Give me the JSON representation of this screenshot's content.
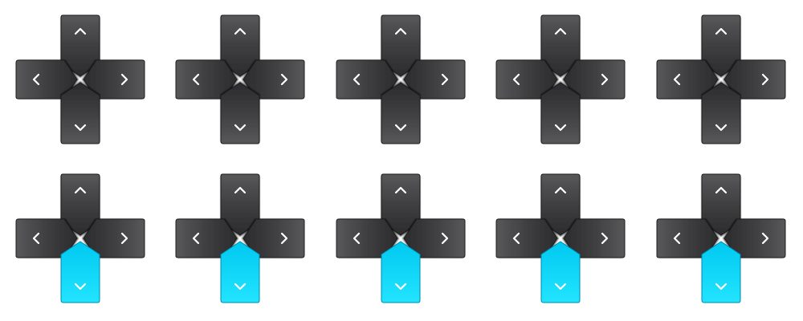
{
  "colors": {
    "background": "#ffffff",
    "button_fill": "#3f3f41",
    "button_fill_light": "#58585a",
    "button_fill_dark": "#2b2b2d",
    "button_edge": "#1a1a1a",
    "highlight_fill": "#00d9ff",
    "highlight_edge": "#0088aa",
    "glyph": "#ffffff",
    "glyph_on_highlight": "#ffffff"
  },
  "directions": [
    "up",
    "left",
    "right",
    "down"
  ],
  "glyphs": {
    "up": "chevron-up-icon",
    "left": "chevron-left-icon",
    "right": "chevron-right-icon",
    "down": "chevron-down-icon"
  },
  "pads": [
    {
      "pressed": "none"
    },
    {
      "pressed": "none"
    },
    {
      "pressed": "none"
    },
    {
      "pressed": "none"
    },
    {
      "pressed": "none"
    },
    {
      "pressed": "down"
    },
    {
      "pressed": "down"
    },
    {
      "pressed": "down"
    },
    {
      "pressed": "down"
    },
    {
      "pressed": "down"
    }
  ]
}
